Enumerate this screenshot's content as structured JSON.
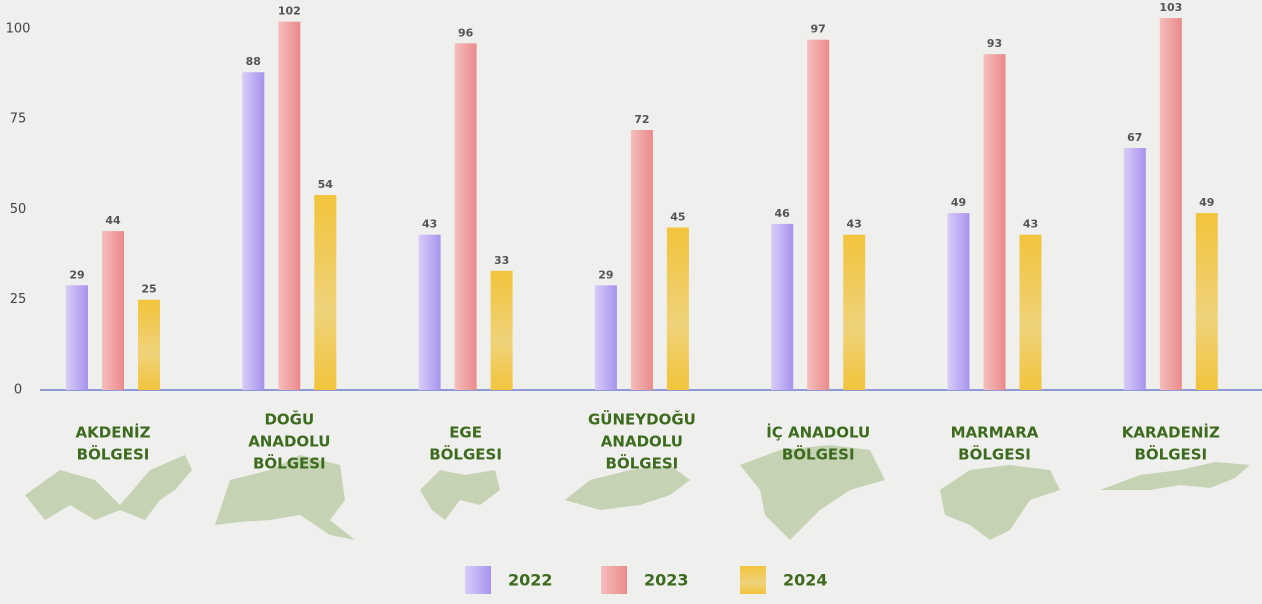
{
  "chart_data": {
    "type": "bar",
    "categories": [
      [
        "AKDENİZ",
        "BÖLGESI"
      ],
      [
        "DOĞU",
        "ANADOLU",
        "BÖLGESI"
      ],
      [
        "EGE",
        "BÖLGESI"
      ],
      [
        "GÜNEYDOĞU",
        "ANADOLU",
        "BÖLGESI"
      ],
      [
        "İÇ ANADOLU",
        "BÖLGESI"
      ],
      [
        "MARMARA",
        "BÖLGESI"
      ],
      [
        "KARADENİZ",
        "BÖLGESI"
      ]
    ],
    "series": [
      {
        "name": "2022",
        "color": "#b5a2f0",
        "values": [
          29,
          88,
          43,
          29,
          46,
          49,
          67
        ]
      },
      {
        "name": "2023",
        "color": "#ee9898",
        "values": [
          44,
          102,
          96,
          72,
          97,
          93,
          103
        ]
      },
      {
        "name": "2024",
        "color": "#f1c644",
        "values": [
          25,
          54,
          33,
          45,
          43,
          43,
          49
        ]
      }
    ],
    "ylim": [
      0,
      108
    ],
    "yticks": [
      0,
      25,
      50,
      75,
      100
    ],
    "grid": false
  }
}
